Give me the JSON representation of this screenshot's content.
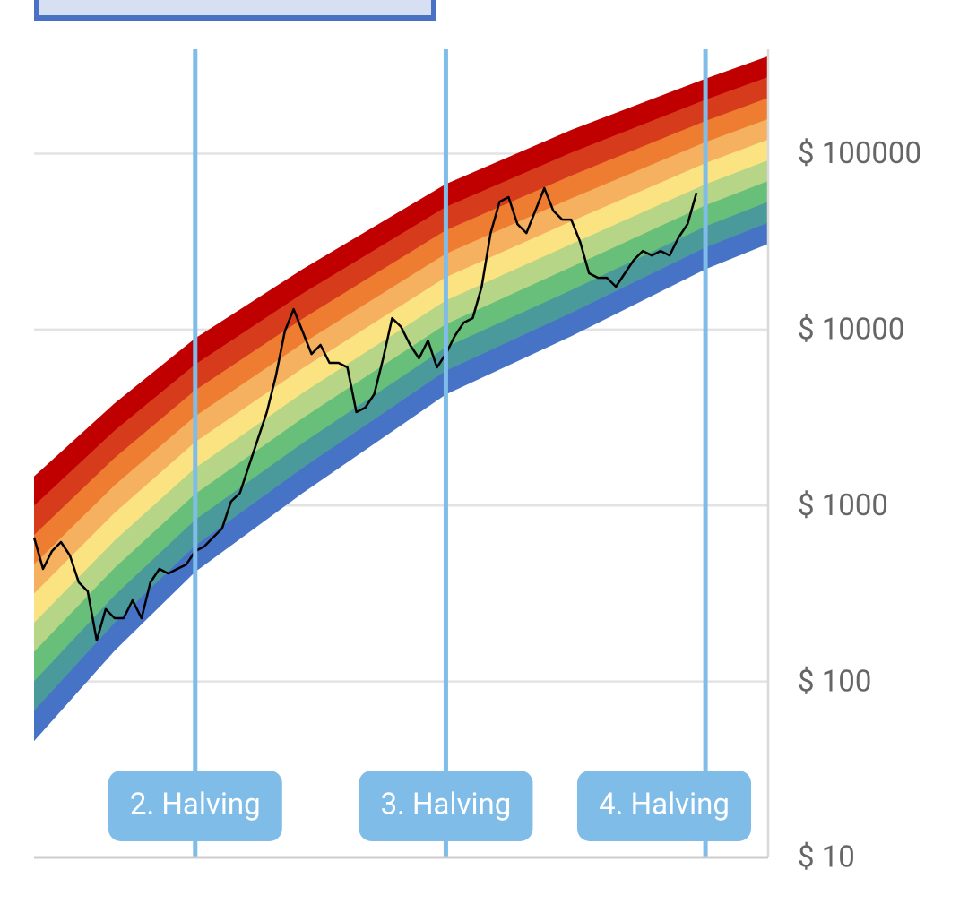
{
  "chart_data": {
    "type": "rainbow",
    "log_scale": true,
    "grid": true,
    "xlim": [
      0,
      82
    ],
    "ylim": [
      10,
      392000
    ],
    "yticks": [
      {
        "value": 10,
        "label": "$ 10"
      },
      {
        "value": 100,
        "label": "$ 100"
      },
      {
        "value": 1000,
        "label": "$ 1000"
      },
      {
        "value": 10000,
        "label": "$ 10000"
      },
      {
        "value": 100000,
        "label": "$ 100000"
      }
    ],
    "band_x": [
      0,
      9,
      18,
      30,
      46,
      60,
      75,
      82
    ],
    "band_colors": [
      "#c00000",
      "#d63c1c",
      "#ee7d31",
      "#f5b060",
      "#fce382",
      "#b6d587",
      "#68bf79",
      "#4b9a9b",
      "#4673c6"
    ],
    "band_bounds": [
      [
        1460,
        3800,
        8900,
        22000,
        67000,
        136000,
        266000,
        357000
      ],
      [
        995,
        2660,
        6320,
        16000,
        49700,
        101000,
        202000,
        272000
      ],
      [
        678,
        1860,
        4510,
        11500,
        36600,
        74800,
        153000,
        207000
      ],
      [
        462,
        1300,
        3210,
        8330,
        26900,
        55500,
        116000,
        157000
      ],
      [
        315,
        906,
        2290,
        6010,
        19800,
        41100,
        88100,
        120000
      ],
      [
        215,
        631,
        1630,
        4350,
        14600,
        30500,
        66800,
        91400
      ],
      [
        147,
        441,
        1160,
        3130,
        10700,
        22600,
        50700,
        69700
      ],
      [
        100,
        308,
        828,
        2260,
        7910,
        16700,
        38500,
        53100
      ],
      [
        68,
        215,
        590,
        1630,
        5820,
        12400,
        29200,
        40400
      ],
      [
        46,
        150,
        421,
        1180,
        4290,
        9190,
        22100,
        30800
      ]
    ],
    "price": {
      "color": "#000000",
      "x": [
        0,
        1,
        2,
        3,
        4,
        5,
        6,
        7,
        8,
        9,
        10,
        11,
        12,
        13,
        14,
        15,
        16,
        17,
        18,
        19,
        20,
        21,
        22,
        23,
        24,
        25,
        26,
        27,
        28,
        29,
        30,
        31,
        32,
        33,
        34,
        35,
        36,
        37,
        38,
        39,
        40,
        41,
        42,
        43,
        44,
        45,
        46,
        47,
        48,
        49,
        50,
        51,
        52,
        53,
        54,
        55,
        56,
        57,
        58,
        59,
        60,
        61,
        62,
        63,
        64,
        65,
        66,
        67,
        68,
        69,
        70,
        71,
        72,
        73,
        74
      ],
      "values": [
        658,
        436,
        551,
        620,
        520,
        366,
        325,
        171,
        258,
        229,
        229,
        289,
        229,
        366,
        436,
        411,
        436,
        462,
        551,
        585,
        658,
        739,
        1052,
        1181,
        1680,
        2388,
        3396,
        5420,
        9750,
        13060,
        9750,
        7270,
        8180,
        6470,
        6470,
        6100,
        3396,
        3600,
        4290,
        6860,
        11620,
        10350,
        8180,
        6860,
        8670,
        6100,
        7270,
        9200,
        10960,
        11620,
        17540,
        35400,
        53300,
        56600,
        39800,
        35400,
        47400,
        63700,
        47400,
        42200,
        42200,
        31500,
        20900,
        19700,
        19700,
        17540,
        20900,
        24900,
        28000,
        26400,
        28000,
        26400,
        33400,
        39800,
        60000
      ]
    },
    "halvings": [
      {
        "x": 18,
        "label": "2. Halving"
      },
      {
        "x": 46,
        "label": "3. Halving"
      },
      {
        "x": 75,
        "label": "4. Halving"
      }
    ],
    "halving_color": "#7fbde8"
  }
}
